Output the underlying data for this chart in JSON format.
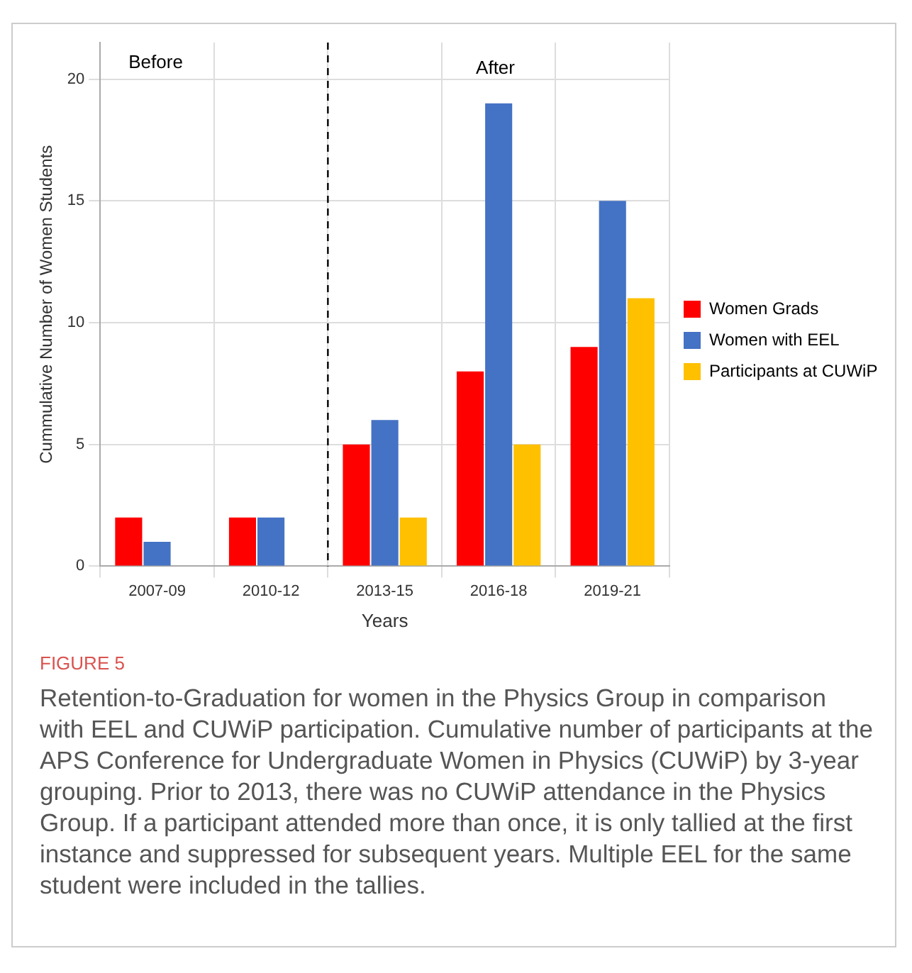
{
  "chart_data": {
    "type": "bar",
    "xlabel": "Years",
    "ylabel": "Cummulative Number of Women Students",
    "categories": [
      "2007-09",
      "2010-12",
      "2013-15",
      "2016-18",
      "2019-21"
    ],
    "series": [
      {
        "name": "Women Grads",
        "color": "#ff0000",
        "values": [
          2,
          2,
          5,
          8,
          9
        ]
      },
      {
        "name": "Women with EEL",
        "color": "#4472c4",
        "values": [
          1,
          2,
          6,
          19,
          15
        ]
      },
      {
        "name": "Participants at CUWiP",
        "color": "#ffc000",
        "values": [
          0,
          0,
          2,
          5,
          11
        ]
      }
    ],
    "ylim": [
      0,
      21.5
    ],
    "yticks": [
      0,
      5,
      10,
      15,
      20
    ],
    "grid": true,
    "legend": "right",
    "ref_lines": [
      {
        "axis": "x",
        "value": "2013-15",
        "line_style": "dashed",
        "color": "#000000"
      }
    ],
    "annotations": [
      "Before",
      "After",
      "FIGURE 5",
      "Retention-to-Graduation for women in the Physics Group in comparison with EEL and CUWiP participation. Cumulative number of participants at the APS Conference for Undergraduate Women in Physics (CUWiP) by 3-year grouping. Prior to 2013, there was no CUWiP attendance in the Physics Group. If a participant attended more than once, it is only tallied at the first instance and suppressed for subsequent years. Multiple EEL for the same student were included in the tallies."
    ]
  }
}
